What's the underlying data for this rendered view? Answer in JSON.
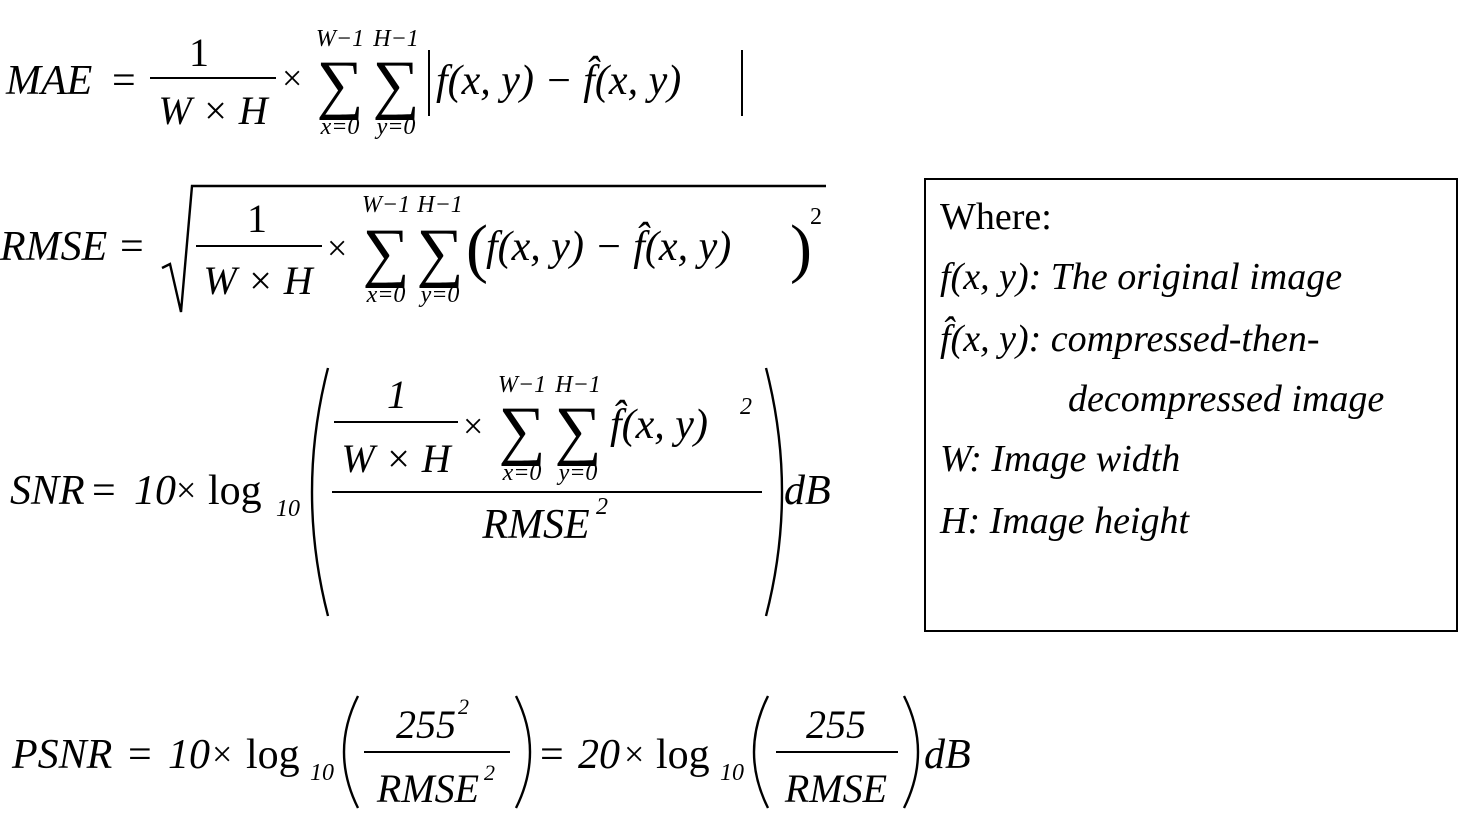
{
  "formulas": {
    "mae": {
      "lhs": "MAE",
      "numerator": "1",
      "denominator": "W × H",
      "sum_x_upper": "W−1",
      "sum_y_upper": "H−1",
      "sum_x_lower": "x=0",
      "sum_y_lower": "y=0",
      "body": "f(x, y) − f̂(x, y)"
    },
    "rmse": {
      "lhs": "RMSE",
      "numerator": "1",
      "denominator": "W × H",
      "sum_x_upper": "W−1",
      "sum_y_upper": "H−1",
      "sum_x_lower": "x=0",
      "sum_y_lower": "y=0",
      "body": "f(x, y) − f̂(x, y)",
      "exponent": "2"
    },
    "snr": {
      "lhs": "SNR",
      "factor": "10",
      "log": "log",
      "log_base": "10",
      "inner_numerator": "1",
      "inner_denominator": "W × H",
      "sum_x_upper": "W−1",
      "sum_y_upper": "H−1",
      "sum_x_lower": "x=0",
      "sum_y_lower": "y=0",
      "body": "f̂(x, y)",
      "body_exponent": "2",
      "denominator": "RMSE",
      "denominator_exponent": "2",
      "unit": "dB"
    },
    "psnr": {
      "lhs": "PSNR",
      "factor1": "10",
      "log": "log",
      "log_base": "10",
      "numerator1": "255",
      "numerator1_exponent": "2",
      "denominator1": "RMSE",
      "denominator1_exponent": "2",
      "factor2": "20",
      "numerator2": "255",
      "denominator2": "RMSE",
      "unit": "dB"
    }
  },
  "legend": {
    "heading": "Where:",
    "items": [
      {
        "symbol": "f(x, y)",
        "text": ": The original image"
      },
      {
        "symbol": "f̂(x, y)",
        "text": ": compressed-then-"
      },
      {
        "symbol": "",
        "text": "decompressed image"
      },
      {
        "symbol": "W",
        "text": ": Image width"
      },
      {
        "symbol": "H",
        "text": ": Image height"
      }
    ]
  }
}
